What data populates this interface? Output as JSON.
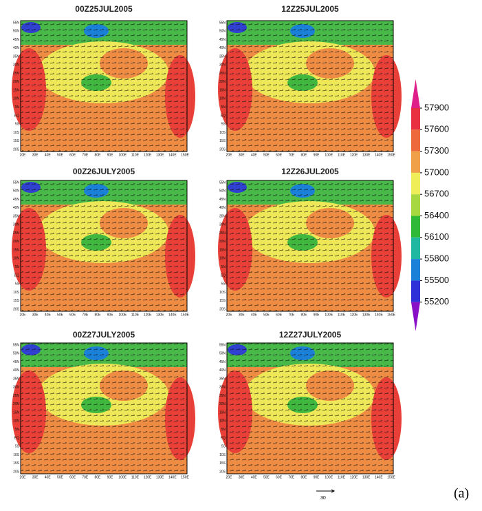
{
  "figure": {
    "panels": [
      {
        "title": "00Z25JUL2005"
      },
      {
        "title": "12Z25JUL2005"
      },
      {
        "title": "00Z26JULY2005"
      },
      {
        "title": "12Z26JUL2005"
      },
      {
        "title": "00Z27JULY2005"
      },
      {
        "title": "12Z27JULY2005"
      }
    ],
    "lat_labels": [
      "55N",
      "50N",
      "45N",
      "40N",
      "35N",
      "30N",
      "25N",
      "20N",
      "15N",
      "10N",
      "5N",
      "EQ",
      "5S",
      "10S",
      "15S",
      "20S"
    ],
    "lon_labels": [
      "20E",
      "30E",
      "40E",
      "50E",
      "60E",
      "70E",
      "80E",
      "90E",
      "100E",
      "110E",
      "120E",
      "130E",
      "140E",
      "150E"
    ],
    "colorbar": {
      "levels": [
        57900,
        57600,
        57300,
        57000,
        56700,
        56400,
        56100,
        55800,
        55500,
        55200
      ],
      "colors": [
        "#e0208a",
        "#e83040",
        "#ee6a3c",
        "#f0a048",
        "#f0ee58",
        "#a8d840",
        "#30b838",
        "#20b8a0",
        "#1a80d8",
        "#3030d8",
        "#8a10c8"
      ]
    },
    "reference_vector": "30",
    "label": "(a)"
  }
}
